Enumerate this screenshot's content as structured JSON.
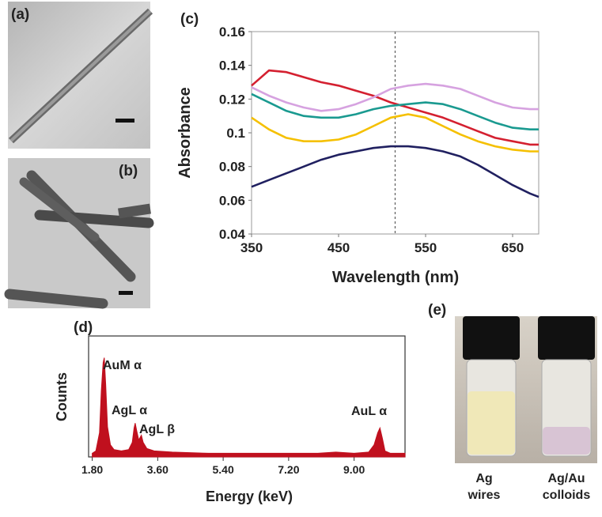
{
  "panels": {
    "a": "(a)",
    "b": "(b)",
    "e": "(e)"
  },
  "vial_captions": [
    [
      "Ag",
      "wires"
    ],
    [
      "Ag/Au",
      "colloids"
    ]
  ],
  "chart_data": [
    {
      "type": "line",
      "panel_label": "(c)",
      "x_label": "Wavelength (nm)",
      "y_label": "Absorbance",
      "x": [
        350,
        370,
        390,
        410,
        430,
        450,
        470,
        490,
        510,
        530,
        550,
        570,
        590,
        610,
        630,
        650,
        670,
        680
      ],
      "series": [
        {
          "color": "#d42030",
          "values": [
            0.128,
            0.137,
            0.136,
            0.133,
            0.13,
            0.128,
            0.125,
            0.122,
            0.118,
            0.115,
            0.112,
            0.109,
            0.105,
            0.101,
            0.097,
            0.095,
            0.093,
            0.093
          ]
        },
        {
          "color": "#d6a2e0",
          "values": [
            0.127,
            0.122,
            0.118,
            0.115,
            0.113,
            0.114,
            0.117,
            0.121,
            0.126,
            0.128,
            0.129,
            0.128,
            0.126,
            0.122,
            0.118,
            0.115,
            0.114,
            0.114
          ]
        },
        {
          "color": "#1a9a90",
          "values": [
            0.123,
            0.118,
            0.113,
            0.11,
            0.109,
            0.109,
            0.111,
            0.114,
            0.116,
            0.117,
            0.118,
            0.117,
            0.114,
            0.11,
            0.106,
            0.103,
            0.102,
            0.102
          ]
        },
        {
          "color": "#f5c000",
          "values": [
            0.109,
            0.102,
            0.097,
            0.095,
            0.095,
            0.096,
            0.099,
            0.104,
            0.109,
            0.111,
            0.109,
            0.104,
            0.099,
            0.095,
            0.092,
            0.09,
            0.089,
            0.089
          ]
        },
        {
          "color": "#202060",
          "values": [
            0.068,
            0.072,
            0.076,
            0.08,
            0.084,
            0.087,
            0.089,
            0.091,
            0.092,
            0.092,
            0.091,
            0.089,
            0.086,
            0.081,
            0.075,
            0.069,
            0.064,
            0.062
          ]
        }
      ],
      "xlim": [
        350,
        680
      ],
      "xticks": [
        350,
        450,
        550,
        650
      ],
      "ylim": [
        0.04,
        0.16
      ],
      "yticks": [
        0.04,
        0.06,
        0.08,
        0.1,
        0.12,
        0.14,
        0.16
      ],
      "reference_x": 515
    },
    {
      "type": "area",
      "panel_label": "(d)",
      "x_label": "Energy (keV)",
      "y_label": "Counts",
      "color": "#c0101e",
      "x": [
        1.8,
        1.9,
        2.0,
        2.05,
        2.1,
        2.13,
        2.17,
        2.22,
        2.3,
        2.4,
        2.6,
        2.8,
        2.9,
        2.95,
        2.98,
        3.02,
        3.08,
        3.15,
        3.2,
        3.3,
        3.5,
        4,
        5,
        6,
        7,
        8,
        8.5,
        9,
        9.4,
        9.55,
        9.65,
        9.71,
        9.78,
        9.85,
        10,
        10.4
      ],
      "values": [
        3,
        5,
        20,
        55,
        78,
        82,
        60,
        25,
        10,
        6,
        5,
        6,
        12,
        24,
        28,
        22,
        14,
        18,
        12,
        7,
        5,
        4,
        3,
        3,
        3,
        3,
        4,
        3,
        4,
        10,
        20,
        24,
        15,
        5,
        3,
        3
      ],
      "xlim": [
        1.7,
        10.4
      ],
      "xticks": [
        {
          "value": 1.8,
          "label": "1.80"
        },
        {
          "value": 3.6,
          "label": "3.60"
        },
        {
          "value": 5.4,
          "label": "5.40"
        },
        {
          "value": 7.2,
          "label": "7.20"
        },
        {
          "value": 9,
          "label": "9.00"
        }
      ],
      "ylim": [
        0,
        100
      ],
      "annotations": [
        "AuM α",
        "AgL α",
        "AgL β",
        "AuL α"
      ]
    }
  ]
}
